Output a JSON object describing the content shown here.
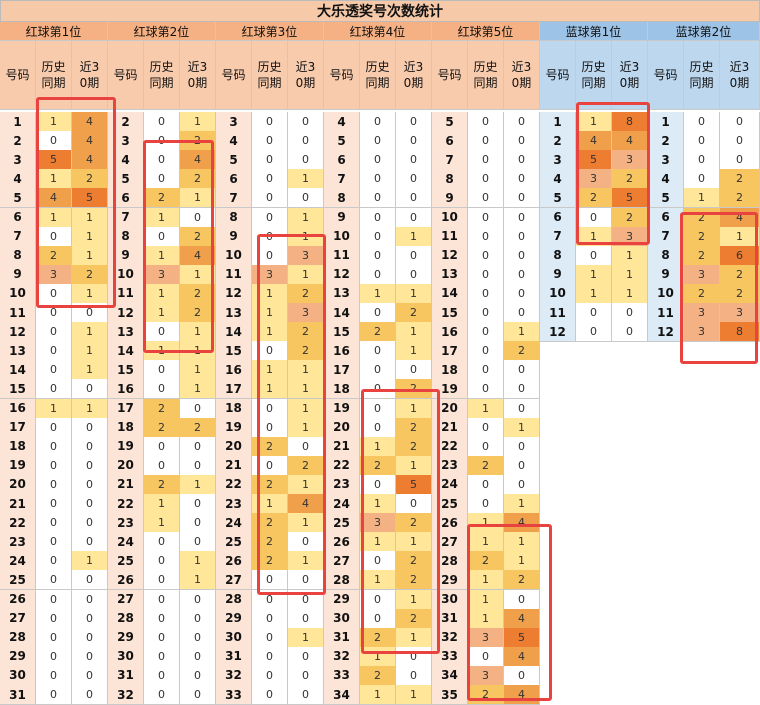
{
  "title": "大乐透奖号次数统计",
  "sub_headers": {
    "number": "号码",
    "history": "历史同期",
    "recent": "近30期"
  },
  "colors": {
    "red_header": "#f5b183",
    "red_subheader": "#f8cbad",
    "red_number_col": "#fce4d6",
    "blue_header": "#9dc3e6",
    "blue_subheader": "#bdd7ee",
    "blue_number_col": "#ddebf7",
    "heat_1": "#ffe699",
    "heat_2": "#f7c661",
    "heat_3": "#f4b183",
    "heat_4": "#f0a04b",
    "heat_5": "#ed7d31",
    "highlight": "#e8433f"
  },
  "groups": [
    {
      "name": "红球第1位",
      "kind": "red",
      "rows": [
        [
          1,
          1,
          4
        ],
        [
          2,
          0,
          4
        ],
        [
          3,
          5,
          4
        ],
        [
          4,
          1,
          2
        ],
        [
          5,
          4,
          5
        ],
        [
          6,
          1,
          1
        ],
        [
          7,
          0,
          1
        ],
        [
          8,
          2,
          1
        ],
        [
          9,
          3,
          2
        ],
        [
          10,
          0,
          1
        ],
        [
          11,
          0,
          0
        ],
        [
          12,
          0,
          1
        ],
        [
          13,
          0,
          1
        ],
        [
          14,
          0,
          1
        ],
        [
          15,
          0,
          0
        ],
        [
          16,
          1,
          1
        ],
        [
          17,
          0,
          0
        ],
        [
          18,
          0,
          0
        ],
        [
          19,
          0,
          0
        ],
        [
          20,
          0,
          0
        ],
        [
          21,
          0,
          0
        ],
        [
          22,
          0,
          0
        ],
        [
          23,
          0,
          0
        ],
        [
          24,
          0,
          1
        ],
        [
          25,
          0,
          0
        ],
        [
          26,
          0,
          0
        ],
        [
          27,
          0,
          0
        ],
        [
          28,
          0,
          0
        ],
        [
          29,
          0,
          0
        ],
        [
          30,
          0,
          0
        ],
        [
          31,
          0,
          0
        ]
      ]
    },
    {
      "name": "红球第2位",
      "kind": "red",
      "rows": [
        [
          2,
          0,
          1
        ],
        [
          3,
          0,
          2
        ],
        [
          4,
          0,
          4
        ],
        [
          5,
          0,
          2
        ],
        [
          6,
          2,
          1
        ],
        [
          7,
          1,
          0
        ],
        [
          8,
          0,
          2
        ],
        [
          9,
          1,
          4
        ],
        [
          10,
          3,
          1
        ],
        [
          11,
          1,
          2
        ],
        [
          12,
          1,
          2
        ],
        [
          13,
          0,
          1
        ],
        [
          14,
          1,
          1
        ],
        [
          15,
          0,
          1
        ],
        [
          16,
          0,
          1
        ],
        [
          17,
          2,
          0
        ],
        [
          18,
          2,
          2
        ],
        [
          19,
          0,
          0
        ],
        [
          20,
          0,
          0
        ],
        [
          21,
          2,
          1
        ],
        [
          22,
          1,
          0
        ],
        [
          23,
          1,
          0
        ],
        [
          24,
          0,
          0
        ],
        [
          25,
          0,
          1
        ],
        [
          26,
          0,
          1
        ],
        [
          27,
          0,
          0
        ],
        [
          28,
          0,
          0
        ],
        [
          29,
          0,
          0
        ],
        [
          30,
          0,
          0
        ],
        [
          31,
          0,
          0
        ],
        [
          32,
          0,
          0
        ]
      ]
    },
    {
      "name": "红球第3位",
      "kind": "red",
      "rows": [
        [
          3,
          0,
          0
        ],
        [
          4,
          0,
          0
        ],
        [
          5,
          0,
          0
        ],
        [
          6,
          0,
          1
        ],
        [
          7,
          0,
          0
        ],
        [
          8,
          0,
          1
        ],
        [
          9,
          0,
          1
        ],
        [
          10,
          0,
          3
        ],
        [
          11,
          3,
          1
        ],
        [
          12,
          1,
          2
        ],
        [
          13,
          1,
          3
        ],
        [
          14,
          1,
          2
        ],
        [
          15,
          0,
          2
        ],
        [
          16,
          1,
          1
        ],
        [
          17,
          1,
          1
        ],
        [
          18,
          0,
          1
        ],
        [
          19,
          0,
          1
        ],
        [
          20,
          2,
          0
        ],
        [
          21,
          0,
          2
        ],
        [
          22,
          2,
          1
        ],
        [
          23,
          1,
          4
        ],
        [
          24,
          2,
          1
        ],
        [
          25,
          2,
          0
        ],
        [
          26,
          2,
          1
        ],
        [
          27,
          0,
          0
        ],
        [
          28,
          0,
          0
        ],
        [
          29,
          0,
          0
        ],
        [
          30,
          0,
          1
        ],
        [
          31,
          0,
          0
        ],
        [
          32,
          0,
          0
        ],
        [
          33,
          0,
          0
        ]
      ]
    },
    {
      "name": "红球第4位",
      "kind": "red",
      "rows": [
        [
          4,
          0,
          0
        ],
        [
          5,
          0,
          0
        ],
        [
          6,
          0,
          0
        ],
        [
          7,
          0,
          0
        ],
        [
          8,
          0,
          0
        ],
        [
          9,
          0,
          0
        ],
        [
          10,
          0,
          1
        ],
        [
          11,
          0,
          0
        ],
        [
          12,
          0,
          0
        ],
        [
          13,
          1,
          1
        ],
        [
          14,
          0,
          2
        ],
        [
          15,
          2,
          1
        ],
        [
          16,
          0,
          1
        ],
        [
          17,
          0,
          0
        ],
        [
          18,
          0,
          2
        ],
        [
          19,
          0,
          1
        ],
        [
          20,
          0,
          2
        ],
        [
          21,
          1,
          2
        ],
        [
          22,
          2,
          1
        ],
        [
          23,
          0,
          5
        ],
        [
          24,
          1,
          0
        ],
        [
          25,
          3,
          2
        ],
        [
          26,
          1,
          1
        ],
        [
          27,
          0,
          2
        ],
        [
          28,
          1,
          2
        ],
        [
          29,
          0,
          1
        ],
        [
          30,
          0,
          2
        ],
        [
          31,
          2,
          1
        ],
        [
          32,
          1,
          0
        ],
        [
          33,
          2,
          0
        ],
        [
          34,
          1,
          1
        ]
      ]
    },
    {
      "name": "红球第5位",
      "kind": "red",
      "rows": [
        [
          5,
          0,
          0
        ],
        [
          6,
          0,
          0
        ],
        [
          7,
          0,
          0
        ],
        [
          8,
          0,
          0
        ],
        [
          9,
          0,
          0
        ],
        [
          10,
          0,
          0
        ],
        [
          11,
          0,
          0
        ],
        [
          12,
          0,
          0
        ],
        [
          13,
          0,
          0
        ],
        [
          14,
          0,
          0
        ],
        [
          15,
          0,
          0
        ],
        [
          16,
          0,
          1
        ],
        [
          17,
          0,
          2
        ],
        [
          18,
          0,
          0
        ],
        [
          19,
          0,
          0
        ],
        [
          20,
          1,
          0
        ],
        [
          21,
          0,
          1
        ],
        [
          22,
          0,
          0
        ],
        [
          23,
          2,
          0
        ],
        [
          24,
          0,
          0
        ],
        [
          25,
          0,
          1
        ],
        [
          26,
          1,
          4
        ],
        [
          27,
          1,
          1
        ],
        [
          28,
          2,
          1
        ],
        [
          29,
          1,
          2
        ],
        [
          30,
          1,
          0
        ],
        [
          31,
          1,
          4
        ],
        [
          32,
          3,
          5
        ],
        [
          33,
          0,
          4
        ],
        [
          34,
          3,
          0
        ],
        [
          35,
          2,
          4
        ]
      ]
    },
    {
      "name": "蓝球第1位",
      "kind": "blue",
      "rows": [
        [
          1,
          1,
          8
        ],
        [
          2,
          4,
          4
        ],
        [
          3,
          5,
          3
        ],
        [
          4,
          3,
          2
        ],
        [
          5,
          2,
          5
        ],
        [
          6,
          0,
          2
        ],
        [
          7,
          1,
          3
        ],
        [
          8,
          0,
          1
        ],
        [
          9,
          1,
          1
        ],
        [
          10,
          1,
          1
        ],
        [
          11,
          0,
          0
        ],
        [
          12,
          0,
          0
        ]
      ]
    },
    {
      "name": "蓝球第2位",
      "kind": "blue",
      "rows": [
        [
          1,
          0,
          0
        ],
        [
          2,
          0,
          0
        ],
        [
          3,
          0,
          0
        ],
        [
          4,
          0,
          2
        ],
        [
          5,
          1,
          2
        ],
        [
          6,
          2,
          4
        ],
        [
          7,
          2,
          1
        ],
        [
          8,
          2,
          6
        ],
        [
          9,
          3,
          2
        ],
        [
          10,
          2,
          2
        ],
        [
          11,
          3,
          3
        ],
        [
          12,
          3,
          8
        ]
      ]
    }
  ]
}
